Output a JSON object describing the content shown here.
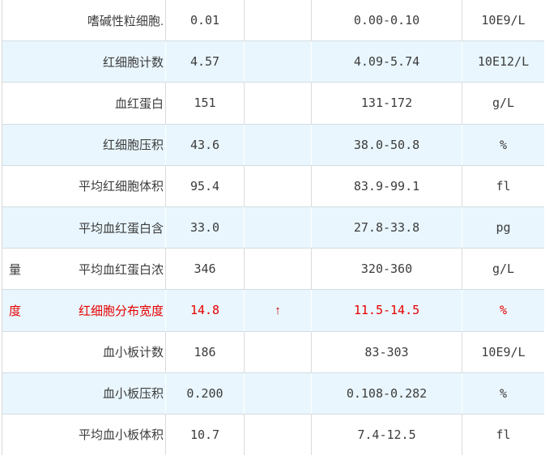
{
  "table": {
    "columns": [
      "test_name",
      "result",
      "flag",
      "reference_range",
      "unit"
    ],
    "rows": [
      {
        "overflow": "",
        "name": "嗜碱性粒细胞.",
        "result": "0.01",
        "flag": "",
        "range": "0.00-0.10",
        "unit": "10E9/L",
        "highlight": false
      },
      {
        "overflow": "",
        "name": "红细胞计数",
        "result": "4.57",
        "flag": "",
        "range": "4.09-5.74",
        "unit": "10E12/L",
        "highlight": false
      },
      {
        "overflow": "",
        "name": "血红蛋白",
        "result": "151",
        "flag": "",
        "range": "131-172",
        "unit": "g/L",
        "highlight": false
      },
      {
        "overflow": "",
        "name": "红细胞压积",
        "result": "43.6",
        "flag": "",
        "range": "38.0-50.8",
        "unit": "%",
        "highlight": false
      },
      {
        "overflow": "",
        "name": "平均红细胞体积",
        "result": "95.4",
        "flag": "",
        "range": "83.9-99.1",
        "unit": "fl",
        "highlight": false
      },
      {
        "overflow": "",
        "name": "平均血红蛋白含",
        "result": "33.0",
        "flag": "",
        "range": "27.8-33.8",
        "unit": "pg",
        "highlight": false
      },
      {
        "overflow": "量",
        "name": "平均血红蛋白浓",
        "result": "346",
        "flag": "",
        "range": "320-360",
        "unit": "g/L",
        "highlight": false
      },
      {
        "overflow": "度",
        "name": "红细胞分布宽度",
        "result": "14.8",
        "flag": "↑",
        "range": "11.5-14.5",
        "unit": "%",
        "highlight": true
      },
      {
        "overflow": "",
        "name": "血小板计数",
        "result": "186",
        "flag": "",
        "range": "83-303",
        "unit": "10E9/L",
        "highlight": false
      },
      {
        "overflow": "",
        "name": "血小板压积",
        "result": "0.200",
        "flag": "",
        "range": "0.108-0.282",
        "unit": "%",
        "highlight": false
      },
      {
        "overflow": "",
        "name": "平均血小板体积",
        "result": "10.7",
        "flag": "",
        "range": "7.4-12.5",
        "unit": "fl",
        "highlight": false
      }
    ]
  },
  "colors": {
    "alt_row_background": "#e9f6fd",
    "normal_text": "#3c3c3c",
    "abnormal_text": "#e60000",
    "flag_arrow": "#c00000",
    "grid_line": "#d4dde3"
  },
  "icons": {
    "high_flag": "↑"
  }
}
